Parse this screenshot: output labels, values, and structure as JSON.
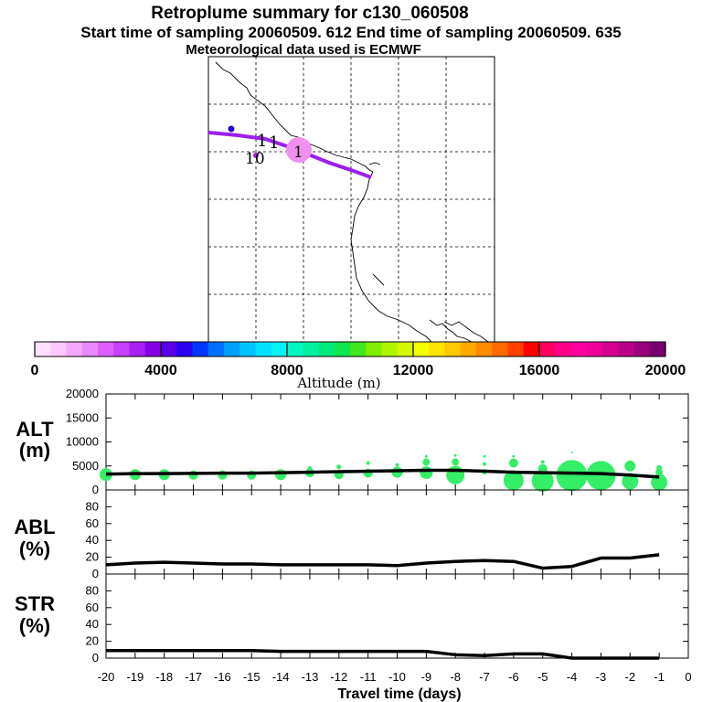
{
  "title": {
    "line1": "Retroplume summary for c130_060508",
    "line2": "Start time of sampling 20060509.   612     End time of sampling 20060509.   635",
    "line3": "Meteorological data used is ECMWF"
  },
  "map": {
    "labels": [
      "1",
      "1",
      "1",
      "10"
    ]
  },
  "colorbar": {
    "title": "Altitude (m)",
    "ticks": [
      "0",
      "4000",
      "8000",
      "12000",
      "16000",
      "20000"
    ],
    "range": [
      0,
      20000
    ],
    "colors": [
      "#ffe0ff",
      "#ffc8ff",
      "#f4a8ff",
      "#ea88ff",
      "#dc60ff",
      "#c640ff",
      "#a820f4",
      "#8800e6",
      "#5a00e8",
      "#2a00f0",
      "#0038ff",
      "#0070ff",
      "#00a0ff",
      "#00c4ff",
      "#00e0ff",
      "#00f4f4",
      "#00f8c0",
      "#00f0a0",
      "#00ea7c",
      "#10e650",
      "#40e620",
      "#80ee00",
      "#b0f400",
      "#d4f800",
      "#f4ff00",
      "#ffe400",
      "#ffc800",
      "#ffaa00",
      "#ff8a00",
      "#ff6a00",
      "#ff4000",
      "#ff0000",
      "#ff0060",
      "#ff0088",
      "#ff00a0",
      "#ee0098",
      "#d40090",
      "#b80088",
      "#98007c",
      "#780070"
    ]
  },
  "panels": {
    "alt": {
      "label_top": "ALT",
      "label_bottom": "(m)"
    },
    "abl": {
      "label_top": "ABL",
      "label_bottom": "(%)"
    },
    "str": {
      "label_top": "STR",
      "label_bottom": "(%)"
    }
  },
  "x_axis": {
    "title": "Travel time (days)",
    "ticks": [
      "-20",
      "-19",
      "-18",
      "-17",
      "-16",
      "-15",
      "-14",
      "-13",
      "-12",
      "-11",
      "-10",
      "-9",
      "-8",
      "-7",
      "-6",
      "-5",
      "-4",
      "-3",
      "-2",
      "-1",
      "0"
    ]
  },
  "chart_data": [
    {
      "type": "line",
      "name": "ALT",
      "ylabel": "ALT (m)",
      "ylim": [
        0,
        20000
      ],
      "yticks": [
        "0",
        "5000",
        "10000",
        "15000",
        "20000"
      ],
      "xlim": [
        -20,
        0
      ],
      "x": [
        -20,
        -19,
        -18,
        -17,
        -16,
        -15,
        -14,
        -13,
        -12,
        -11,
        -10,
        -9,
        -8,
        -7,
        -6,
        -5,
        -4,
        -3,
        -2,
        -1
      ],
      "y": [
        3300,
        3400,
        3400,
        3450,
        3500,
        3500,
        3600,
        3700,
        3800,
        3900,
        4000,
        4100,
        4100,
        3900,
        3700,
        3600,
        3500,
        3400,
        3100,
        2700
      ],
      "scatter": {
        "color": "#33ee66",
        "points": [
          {
            "x": -20,
            "y": 3200,
            "s": 7
          },
          {
            "x": -19,
            "y": 3200,
            "s": 6
          },
          {
            "x": -18,
            "y": 3200,
            "s": 6
          },
          {
            "x": -17,
            "y": 3100,
            "s": 5
          },
          {
            "x": -16,
            "y": 3100,
            "s": 5
          },
          {
            "x": -15,
            "y": 3100,
            "s": 5
          },
          {
            "x": -14,
            "y": 3200,
            "s": 6
          },
          {
            "x": -13,
            "y": 3600,
            "s": 5
          },
          {
            "x": -13,
            "y": 4600,
            "s": 2
          },
          {
            "x": -12,
            "y": 3200,
            "s": 5
          },
          {
            "x": -12,
            "y": 4800,
            "s": 2.5
          },
          {
            "x": -11,
            "y": 3500,
            "s": 5
          },
          {
            "x": -11,
            "y": 5600,
            "s": 2
          },
          {
            "x": -10,
            "y": 3700,
            "s": 6
          },
          {
            "x": -10,
            "y": 5200,
            "s": 2
          },
          {
            "x": -9,
            "y": 3600,
            "s": 7
          },
          {
            "x": -9,
            "y": 5800,
            "s": 4
          },
          {
            "x": -9,
            "y": 7000,
            "s": 1.5
          },
          {
            "x": -8,
            "y": 3100,
            "s": 10
          },
          {
            "x": -8,
            "y": 5800,
            "s": 4
          },
          {
            "x": -8,
            "y": 7200,
            "s": 1.5
          },
          {
            "x": -7,
            "y": 3800,
            "s": 3
          },
          {
            "x": -7,
            "y": 5400,
            "s": 2
          },
          {
            "x": -7,
            "y": 7000,
            "s": 1.5
          },
          {
            "x": -6,
            "y": 2000,
            "s": 11
          },
          {
            "x": -6,
            "y": 5600,
            "s": 5
          },
          {
            "x": -6,
            "y": 7000,
            "s": 1.5
          },
          {
            "x": -5,
            "y": 1900,
            "s": 12
          },
          {
            "x": -5,
            "y": 4400,
            "s": 5
          },
          {
            "x": -5,
            "y": 5800,
            "s": 2
          },
          {
            "x": -4,
            "y": 3000,
            "s": 17
          },
          {
            "x": -4,
            "y": 7800,
            "s": 1
          },
          {
            "x": -3,
            "y": 3000,
            "s": 16
          },
          {
            "x": -2,
            "y": 1800,
            "s": 9
          },
          {
            "x": -2,
            "y": 5000,
            "s": 6
          },
          {
            "x": -1,
            "y": 1600,
            "s": 9
          },
          {
            "x": -1,
            "y": 3700,
            "s": 4
          },
          {
            "x": -1,
            "y": 4600,
            "s": 3
          }
        ]
      }
    },
    {
      "type": "line",
      "name": "ABL",
      "ylabel": "ABL (%)",
      "ylim": [
        0,
        100
      ],
      "yticks": [
        "0",
        "20",
        "40",
        "60",
        "80"
      ],
      "xlim": [
        -20,
        0
      ],
      "x": [
        -20,
        -19,
        -18,
        -17,
        -16,
        -15,
        -14,
        -13,
        -12,
        -11,
        -10,
        -9,
        -8,
        -7,
        -6,
        -5,
        -4,
        -3,
        -2,
        -1
      ],
      "y": [
        11,
        13,
        14,
        13,
        12,
        12,
        11,
        11,
        11,
        11,
        10,
        13,
        15,
        16,
        15,
        7,
        9,
        19,
        19,
        23
      ]
    },
    {
      "type": "line",
      "name": "STR",
      "ylabel": "STR (%)",
      "ylim": [
        0,
        100
      ],
      "yticks": [
        "0",
        "20",
        "40",
        "60",
        "80"
      ],
      "xlim": [
        -20,
        0
      ],
      "x": [
        -20,
        -19,
        -18,
        -17,
        -16,
        -15,
        -14,
        -13,
        -12,
        -11,
        -10,
        -9,
        -8,
        -7,
        -6,
        -5,
        -4,
        -3,
        -2,
        -1
      ],
      "y": [
        9,
        9,
        9,
        9,
        9,
        9,
        8,
        8,
        8,
        8,
        8,
        8,
        4,
        3,
        5,
        5,
        0,
        0,
        0,
        0
      ]
    }
  ]
}
